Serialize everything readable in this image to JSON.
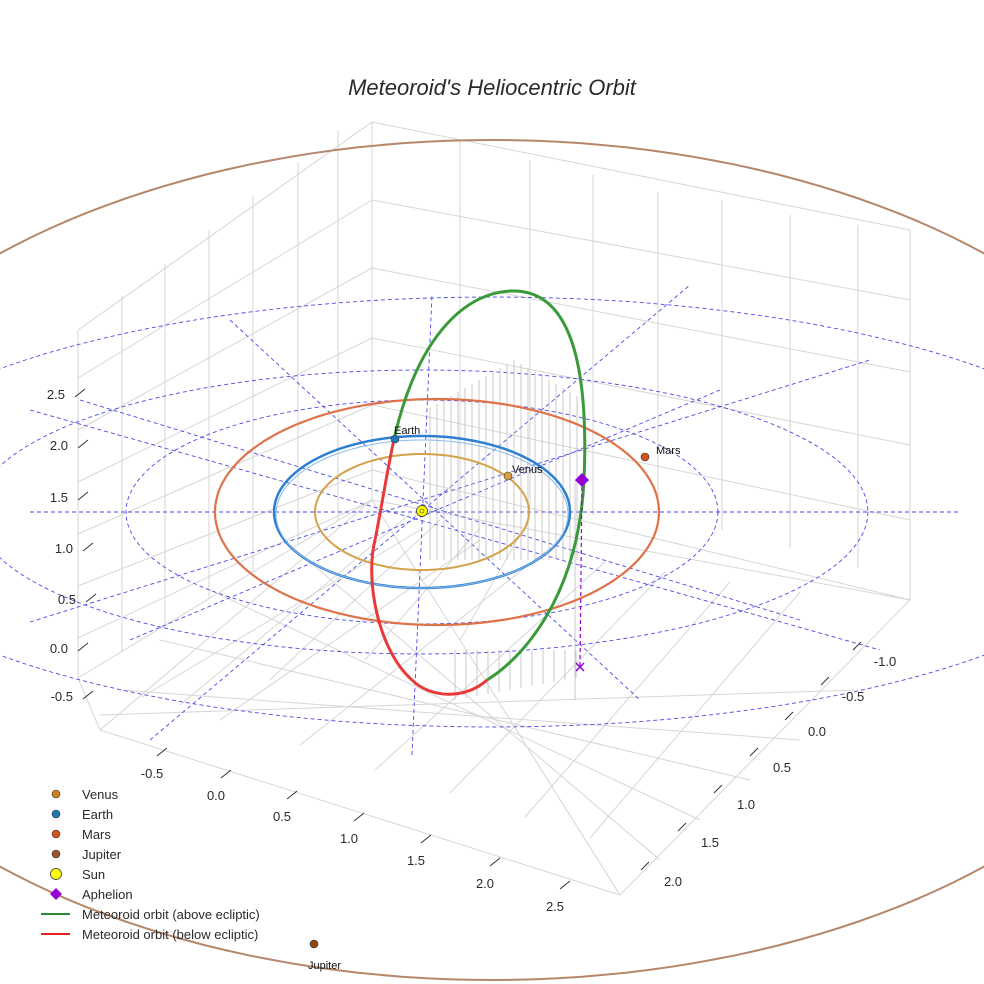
{
  "chart_data": {
    "type": "scatter",
    "projection": "3d",
    "title": "Meteoroid's Heliocentric Orbit",
    "axes": {
      "z_ticks": [
        "-0.5",
        "0.0",
        "0.5",
        "1.0",
        "1.5",
        "2.0",
        "2.5"
      ],
      "y_ticks": [
        "-0.5",
        "0.0",
        "0.5",
        "1.0",
        "1.5",
        "2.0",
        "2.5"
      ],
      "x_ticks": [
        "-1.0",
        "-0.5",
        "0.0",
        "0.5",
        "1.0",
        "1.5",
        "2.0"
      ]
    },
    "ecliptic_grid_radii_au": [
      1,
      2,
      3
    ],
    "planets": [
      {
        "name": "Venus",
        "orbit_radius_au": 0.72,
        "color": "#d9a043",
        "orbit_color": "#d4a24a",
        "label": "Venus"
      },
      {
        "name": "Earth",
        "orbit_radius_au": 1.0,
        "color": "#1f77b4",
        "orbit_color": "#2d7fd2",
        "label": "Earth"
      },
      {
        "name": "Mars",
        "orbit_radius_au": 1.52,
        "color": "#d0521c",
        "orbit_color": "#e0724a",
        "label": "Mars"
      },
      {
        "name": "Jupiter",
        "orbit_radius_au": 5.2,
        "color": "#8b4513",
        "orbit_color": "#b5876a",
        "label": "Jupiter"
      }
    ],
    "sun": {
      "name": "Sun",
      "color": "#ffff00"
    },
    "aphelion": {
      "name": "Aphelion",
      "color": "#9400d3"
    },
    "series": [
      {
        "name": "Meteoroid orbit (above ecliptic)",
        "color": "#3a9a3a"
      },
      {
        "name": "Meteoroid orbit (below ecliptic)",
        "color": "#e83a3a"
      }
    ],
    "legend": {
      "position": "bottom-left",
      "entries": [
        {
          "label": "Venus",
          "marker": "circle",
          "color": "#d08020"
        },
        {
          "label": "Earth",
          "marker": "circle",
          "color": "#1f77b4"
        },
        {
          "label": "Mars",
          "marker": "circle",
          "color": "#d0521c"
        },
        {
          "label": "Jupiter",
          "marker": "circle",
          "color": "#a0522d"
        },
        {
          "label": "Sun",
          "marker": "circle-large",
          "color": "#ffff00"
        },
        {
          "label": "Aphelion",
          "marker": "diamond",
          "color": "#9400d3"
        },
        {
          "label": "Meteoroid orbit (above ecliptic)",
          "marker": "line",
          "color": "#2a8a2a"
        },
        {
          "label": "Meteoroid orbit (below ecliptic)",
          "marker": "line",
          "color": "#e82020"
        }
      ]
    }
  }
}
